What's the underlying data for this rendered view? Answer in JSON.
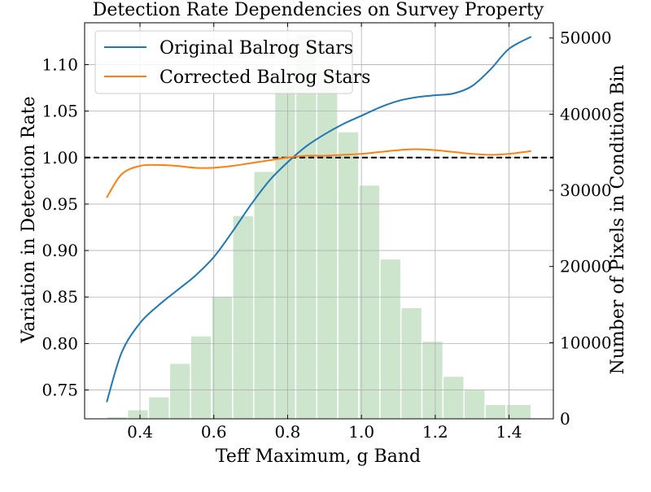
{
  "chart_data": {
    "type": "line+histogram",
    "title": "Detection Rate Dependencies on Survey Property",
    "xlabel": "Teff Maximum, g Band",
    "ylabel": "Variation in Detection Rate",
    "y2label": "Number of Pixels in Condition Bin",
    "xlim": [
      0.25,
      1.52
    ],
    "ylim": [
      0.719,
      1.145
    ],
    "y2lim": [
      0,
      52000
    ],
    "xticks": [
      0.4,
      0.6,
      0.8,
      1.0,
      1.2,
      1.4
    ],
    "xtick_labels": [
      "0.4",
      "0.6",
      "0.8",
      "1.0",
      "1.2",
      "1.4"
    ],
    "yticks": [
      0.75,
      0.8,
      0.85,
      0.9,
      0.95,
      1.0,
      1.05,
      1.1
    ],
    "ytick_labels": [
      "0.75",
      "0.80",
      "0.85",
      "0.90",
      "0.95",
      "1.00",
      "1.05",
      "1.10"
    ],
    "y2ticks": [
      0,
      10000,
      20000,
      30000,
      40000,
      50000
    ],
    "y2tick_labels": [
      "0",
      "10000",
      "20000",
      "30000",
      "40000",
      "50000"
    ],
    "grid": true,
    "reference_line": {
      "y": 1.0,
      "style": "dashed",
      "color": "#000000"
    },
    "legend": {
      "placement": "top-left"
    },
    "series": [
      {
        "name": "Original Balrog Stars",
        "color": "#1f77b4",
        "x": [
          0.31,
          0.35,
          0.4,
          0.45,
          0.5,
          0.55,
          0.6,
          0.65,
          0.7,
          0.75,
          0.8,
          0.85,
          0.9,
          0.95,
          1.0,
          1.05,
          1.1,
          1.15,
          1.2,
          1.25,
          1.3,
          1.35,
          1.4,
          1.46
        ],
        "values": [
          0.737,
          0.79,
          0.822,
          0.841,
          0.857,
          0.873,
          0.893,
          0.92,
          0.949,
          0.975,
          0.995,
          1.012,
          1.025,
          1.036,
          1.045,
          1.054,
          1.061,
          1.065,
          1.067,
          1.069,
          1.077,
          1.095,
          1.117,
          1.13
        ]
      },
      {
        "name": "Corrected Balrog Stars",
        "color": "#ff7f0e",
        "x": [
          0.31,
          0.35,
          0.4,
          0.45,
          0.5,
          0.55,
          0.6,
          0.65,
          0.7,
          0.75,
          0.8,
          0.85,
          0.9,
          0.95,
          1.0,
          1.05,
          1.1,
          1.15,
          1.2,
          1.25,
          1.3,
          1.35,
          1.4,
          1.46
        ],
        "values": [
          0.957,
          0.982,
          0.991,
          0.992,
          0.991,
          0.989,
          0.989,
          0.991,
          0.994,
          0.997,
          1.0,
          1.002,
          1.002,
          1.003,
          1.004,
          1.006,
          1.008,
          1.009,
          1.008,
          1.006,
          1.004,
          1.003,
          1.004,
          1.007
        ]
      }
    ],
    "histogram": {
      "color": "#cce5cc",
      "bin_edges": [
        0.31,
        0.366,
        0.423,
        0.48,
        0.537,
        0.594,
        0.651,
        0.708,
        0.765,
        0.822,
        0.879,
        0.936,
        0.993,
        1.05,
        1.107,
        1.164,
        1.221,
        1.278,
        1.335,
        1.392,
        1.46
      ],
      "counts": [
        300,
        1200,
        2900,
        7300,
        10900,
        16100,
        26700,
        32500,
        44300,
        50500,
        45700,
        37700,
        30700,
        21000,
        14600,
        10200,
        5600,
        3800,
        1900,
        1900
      ]
    }
  }
}
